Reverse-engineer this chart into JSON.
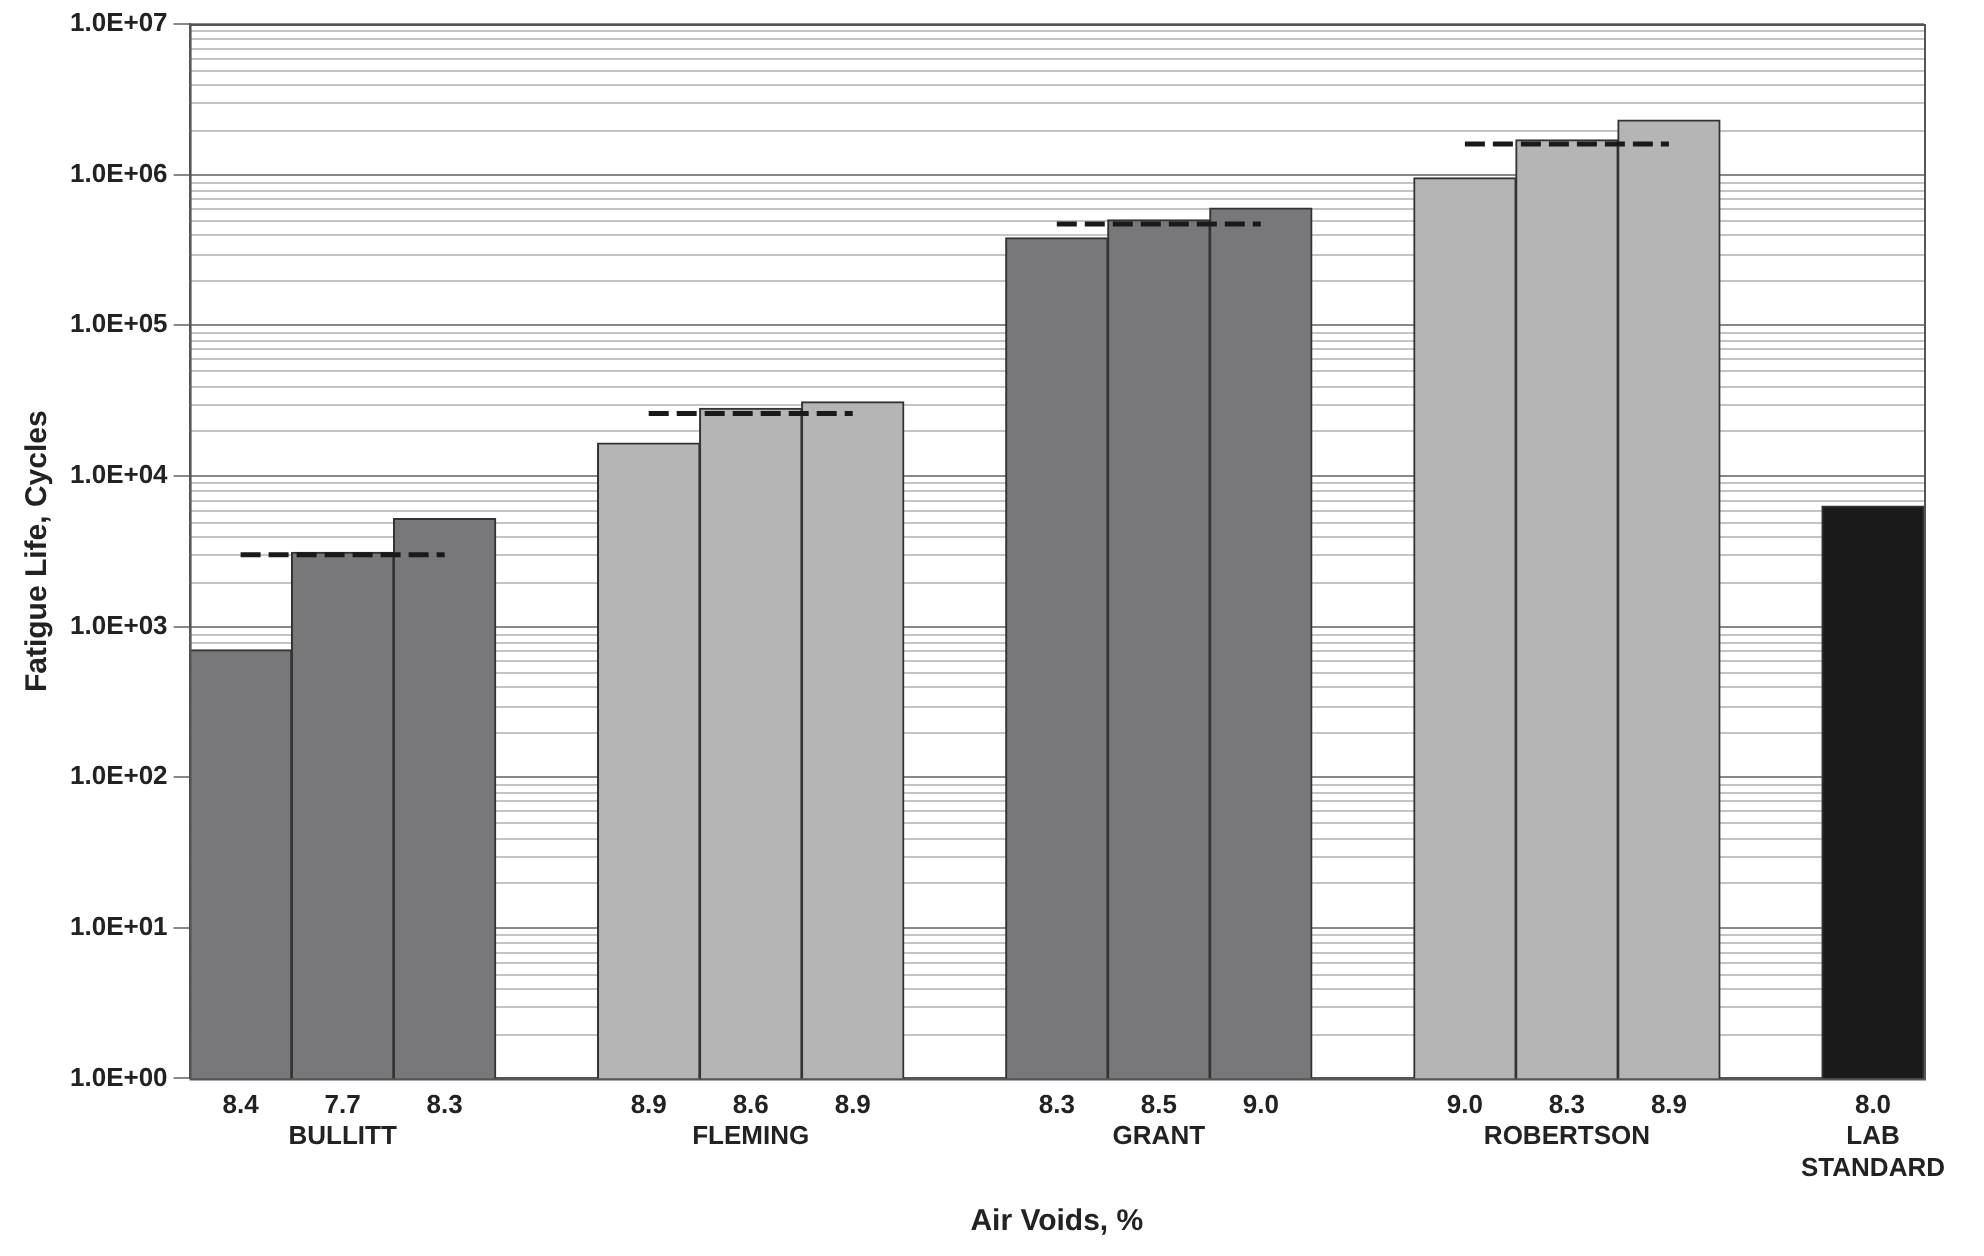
{
  "chart_data": {
    "type": "bar",
    "xlabel": "Air Voids, %",
    "ylabel": "Fatigue Life, Cycles",
    "categories": [
      "8.4",
      "7.7\nBULLITT",
      "8.3",
      null,
      "8.9",
      "8.6\nFLEMING",
      "8.9",
      null,
      "8.3",
      "8.5\nGRANT",
      "9.0",
      null,
      "9.0",
      "8.3\nROBERTSON",
      "8.9",
      null,
      "8.0\nLAB\nSTANDARD"
    ],
    "series": [
      {
        "type": "bar",
        "colors": [
          "#78787a",
          "#78787a",
          "#78787a",
          null,
          "#b5b5b5",
          "#b5b5b5",
          "#b5b5b5",
          null,
          "#78787a",
          "#78787a",
          "#78787a",
          null,
          "#b5b5b5",
          "#b5b5b5",
          "#b5b5b5",
          null,
          "#1a1a1a"
        ],
        "values": [
          700,
          3100,
          5200,
          null,
          16500,
          28000,
          31000,
          null,
          380000,
          500000,
          600000,
          null,
          950000,
          1700000,
          2300000,
          null,
          6300
        ]
      },
      {
        "type": "line",
        "color": "#1a1a1a",
        "line_style": "dashed",
        "marker": "none",
        "values": [
          3000,
          3000,
          3000,
          null,
          26000,
          26000,
          26000,
          null,
          470000,
          470000,
          470000,
          null,
          1600000,
          1600000,
          1600000,
          null,
          null
        ]
      }
    ],
    "log": "y",
    "ylim": [
      1,
      10000000
    ],
    "yticks": [
      {
        "value": 1,
        "label": "1.0E+00"
      },
      {
        "value": 10,
        "label": "1.0E+01"
      },
      {
        "value": 100,
        "label": "1.0E+02"
      },
      {
        "value": 1000,
        "label": "1.0E+03"
      },
      {
        "value": 10000,
        "label": "1.0E+04"
      },
      {
        "value": 100000,
        "label": "1.0E+05"
      },
      {
        "value": 1000000,
        "label": "1.0E+06"
      },
      {
        "value": 10000000,
        "label": "1.0E+07"
      }
    ],
    "grid": "y",
    "legend": false
  }
}
